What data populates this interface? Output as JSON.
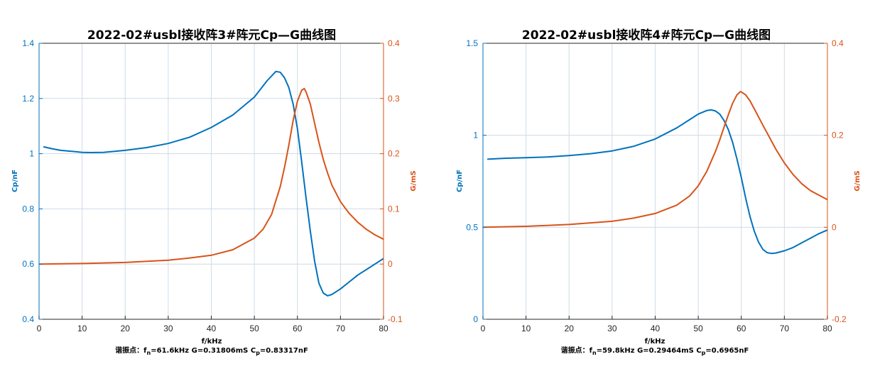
{
  "colors": {
    "cp": "#0072BD",
    "g": "#D95319",
    "grid": "#cfdbe6",
    "axis": "#262626"
  },
  "chart_data": [
    {
      "type": "line",
      "title": "2022-02#usbl接收阵3#阵元Cp—G曲线图",
      "xlabel": "f/kHz",
      "ylabel_left": "Cp/nF",
      "ylabel_right": "G/mS",
      "xlim": [
        0,
        80
      ],
      "ylim_left": [
        0.4,
        1.4
      ],
      "ylim_right": [
        -0.1,
        0.4
      ],
      "xticks": [
        0,
        10,
        20,
        30,
        40,
        50,
        60,
        70,
        80
      ],
      "yticks_left": [
        0.4,
        0.6,
        0.8,
        1.0,
        1.2,
        1.4
      ],
      "yticks_right": [
        -0.1,
        0,
        0.1,
        0.2,
        0.3,
        0.4
      ],
      "ytick_labels_left": [
        "0.4",
        "0.6",
        "0.8",
        "1",
        "1.2",
        "1.4"
      ],
      "ytick_labels_right": [
        "-0.1",
        "0",
        "0.1",
        "0.2",
        "0.3",
        "0.4"
      ],
      "grid": "vertical and horizontal at left ticks",
      "series": [
        {
          "name": "Cp/nF",
          "axis": "left",
          "x": [
            1,
            3,
            5,
            8,
            10,
            12,
            15,
            20,
            25,
            30,
            35,
            40,
            45,
            50,
            53,
            55,
            56,
            57,
            58,
            59,
            60,
            61,
            62,
            63,
            64,
            65,
            66,
            67,
            68,
            70,
            72,
            74,
            76,
            78,
            80
          ],
          "values": [
            1.025,
            1.018,
            1.012,
            1.008,
            1.005,
            1.004,
            1.005,
            1.012,
            1.022,
            1.037,
            1.06,
            1.095,
            1.14,
            1.205,
            1.265,
            1.298,
            1.295,
            1.275,
            1.24,
            1.18,
            1.09,
            0.97,
            0.84,
            0.72,
            0.61,
            0.53,
            0.495,
            0.485,
            0.49,
            0.51,
            0.535,
            0.56,
            0.58,
            0.6,
            0.62
          ]
        },
        {
          "name": "G/mS",
          "axis": "right",
          "x": [
            0,
            10,
            20,
            30,
            35,
            40,
            45,
            50,
            52,
            54,
            56,
            57,
            58,
            59,
            60,
            61,
            61.6,
            62,
            63,
            64,
            65,
            66,
            67,
            68,
            70,
            72,
            74,
            76,
            78,
            80
          ],
          "values": [
            0.0,
            0.001,
            0.003,
            0.007,
            0.011,
            0.016,
            0.026,
            0.047,
            0.063,
            0.09,
            0.14,
            0.175,
            0.215,
            0.26,
            0.295,
            0.315,
            0.318,
            0.312,
            0.29,
            0.255,
            0.22,
            0.19,
            0.165,
            0.143,
            0.113,
            0.092,
            0.076,
            0.063,
            0.053,
            0.045
          ]
        }
      ],
      "annotation": {
        "prefix": "谐振点：f",
        "sub1": "n",
        "mid1": "=61.6kHz  G=0.31806mS  C",
        "sub2": "p",
        "suffix": "=0.83317nF"
      }
    },
    {
      "type": "line",
      "title": "2022-02#usbl接收阵4#阵元Cp—G曲线图",
      "xlabel": "f/kHz",
      "ylabel_left": "Cp/nF",
      "ylabel_right": "G/mS",
      "xlim": [
        0,
        80
      ],
      "ylim_left": [
        0,
        1.5
      ],
      "ylim_right": [
        -0.2,
        0.4
      ],
      "xticks": [
        0,
        10,
        20,
        30,
        40,
        50,
        60,
        70,
        80
      ],
      "yticks_left": [
        0,
        0.5,
        1.0,
        1.5
      ],
      "yticks_right": [
        -0.2,
        0,
        0.2,
        0.4
      ],
      "ytick_labels_left": [
        "0",
        "0.5",
        "1",
        "1.5"
      ],
      "ytick_labels_right": [
        "-0.2",
        "0",
        "0.2",
        "0.4"
      ],
      "grid": "vertical and horizontal at left ticks",
      "series": [
        {
          "name": "Cp/nF",
          "axis": "left",
          "x": [
            1,
            5,
            10,
            15,
            20,
            25,
            30,
            35,
            40,
            45,
            48,
            50,
            52,
            53,
            54,
            55,
            56,
            57,
            58,
            59,
            60,
            61,
            62,
            63,
            64,
            65,
            66,
            67,
            68,
            70,
            72,
            74,
            76,
            78,
            80
          ],
          "values": [
            0.87,
            0.875,
            0.878,
            0.882,
            0.89,
            0.9,
            0.915,
            0.94,
            0.98,
            1.04,
            1.085,
            1.115,
            1.135,
            1.138,
            1.132,
            1.115,
            1.08,
            1.03,
            0.96,
            0.87,
            0.77,
            0.66,
            0.56,
            0.48,
            0.42,
            0.38,
            0.362,
            0.358,
            0.36,
            0.372,
            0.39,
            0.415,
            0.44,
            0.465,
            0.485
          ]
        },
        {
          "name": "G/mS",
          "axis": "right",
          "x": [
            0,
            10,
            20,
            30,
            35,
            40,
            45,
            48,
            50,
            52,
            54,
            55,
            56,
            57,
            58,
            59,
            59.8,
            60,
            61,
            62,
            63,
            64,
            65,
            66,
            68,
            70,
            72,
            74,
            76,
            78,
            80
          ],
          "values": [
            0.0,
            0.002,
            0.006,
            0.013,
            0.02,
            0.03,
            0.048,
            0.068,
            0.09,
            0.122,
            0.165,
            0.19,
            0.218,
            0.245,
            0.27,
            0.288,
            0.295,
            0.294,
            0.288,
            0.275,
            0.258,
            0.24,
            0.222,
            0.205,
            0.17,
            0.14,
            0.115,
            0.095,
            0.08,
            0.07,
            0.06
          ]
        }
      ],
      "annotation": {
        "prefix": "谐振点：f",
        "sub1": "n",
        "mid1": "=59.8kHz  G=0.29464mS  C",
        "sub2": "p",
        "suffix": "=0.6965nF"
      }
    }
  ]
}
